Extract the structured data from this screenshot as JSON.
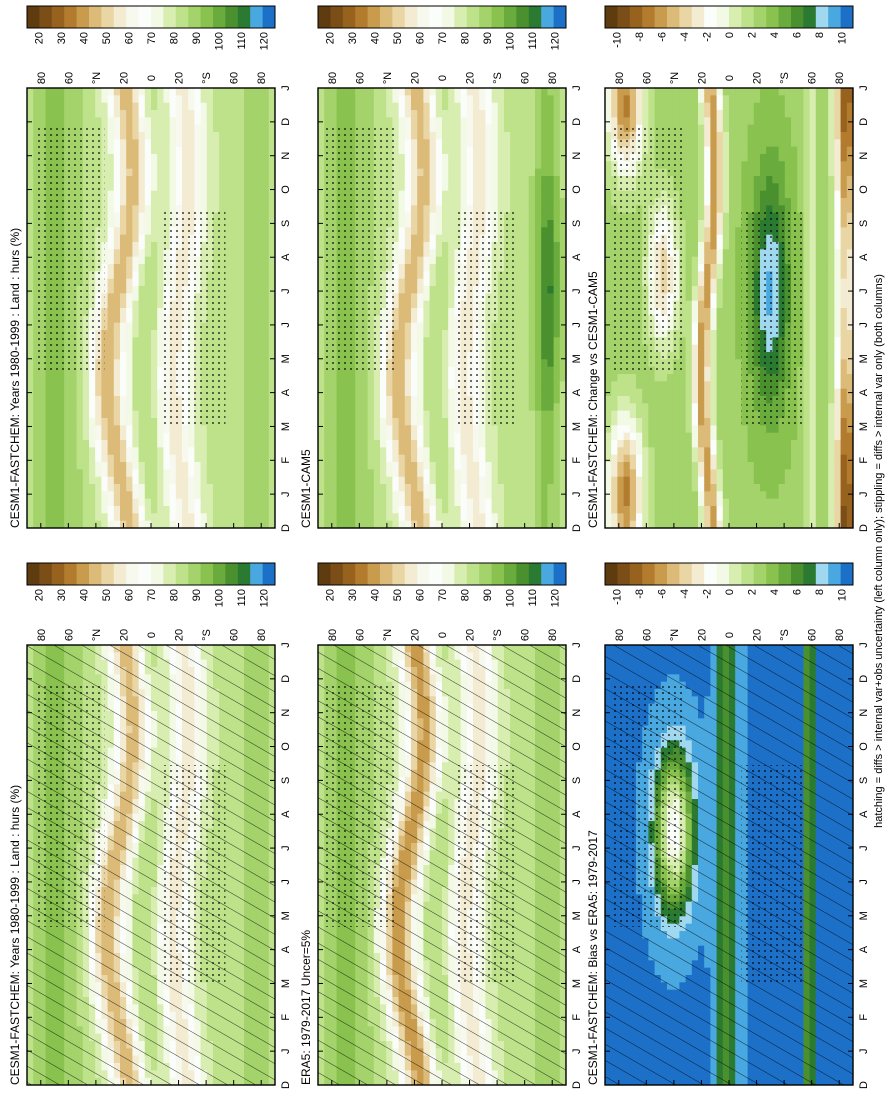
{
  "figure": {
    "footnote": "hatching = diffs > internal var+obs uncertainty (left column only); stippling = diffs > internal var only (both columns)",
    "colors": {
      "abs": [
        "#5e3c0f",
        "#7a4e16",
        "#96621e",
        "#b27b2e",
        "#c99b4c",
        "#dcbb79",
        "#e9d6a4",
        "#f3ecd2",
        "#f7f8ee",
        "#fbfdfb",
        "#f2f9e4",
        "#d8eeb0",
        "#bde28a",
        "#a3d36a",
        "#89c24f",
        "#6aab3e",
        "#4a902f",
        "#2b7a32",
        "#4aa8e0",
        "#1c70c8"
      ],
      "diff": [
        "#5e3c0f",
        "#7a4e16",
        "#96621e",
        "#b27b2e",
        "#c99b4c",
        "#dcbb79",
        "#e9d6a4",
        "#f3ecd2",
        "#fbfdfb",
        "#f2f9e4",
        "#d8eeb0",
        "#bde28a",
        "#a3d36a",
        "#89c24f",
        "#6aab3e",
        "#4a902f",
        "#2b7a32",
        "#a0d8f0",
        "#4aa8e0",
        "#1c70c8"
      ]
    }
  },
  "chart_data": [
    {
      "type": "heatmap",
      "title": "CESM1-FASTCHEM: Years 1980-1999 : Land : hurs (%)",
      "x_ticks": [
        "D",
        "J",
        "F",
        "M",
        "A",
        "M",
        "J",
        "J",
        "A",
        "S",
        "O",
        "N",
        "D",
        "J"
      ],
      "y_ticks": [
        "80",
        "60",
        "°N",
        "20",
        "0",
        "20",
        "°S",
        "60",
        "80"
      ],
      "colorbar_ticks": [
        "120",
        "110",
        "100",
        "90",
        "80",
        "70",
        "60",
        "50",
        "40",
        "30",
        "20"
      ],
      "colorbar_range": [
        15,
        125
      ],
      "mode": "abs",
      "hatching": true,
      "stippling": true,
      "variable": "hurs",
      "units": "%"
    },
    {
      "type": "heatmap",
      "title": "CESM1-FASTCHEM: Years 1980-1999 : Land : hurs (%)",
      "x_ticks": [
        "D",
        "J",
        "F",
        "M",
        "A",
        "M",
        "J",
        "J",
        "A",
        "S",
        "O",
        "N",
        "D",
        "J"
      ],
      "y_ticks": [
        "80",
        "60",
        "°N",
        "20",
        "0",
        "20",
        "°S",
        "60",
        "80"
      ],
      "colorbar_ticks": [
        "120",
        "110",
        "100",
        "90",
        "80",
        "70",
        "60",
        "50",
        "40",
        "30",
        "20"
      ],
      "colorbar_range": [
        15,
        125
      ],
      "mode": "abs",
      "hatching": false,
      "stippling": true
    },
    {
      "type": "heatmap",
      "title": "ERA5: 1979-2017 Uncer=5%",
      "x_ticks": [
        "D",
        "J",
        "F",
        "M",
        "A",
        "M",
        "J",
        "J",
        "A",
        "S",
        "O",
        "N",
        "D",
        "J"
      ],
      "y_ticks": [
        "80",
        "60",
        "°N",
        "20",
        "0",
        "20",
        "°S",
        "60",
        "80"
      ],
      "colorbar_ticks": [
        "120",
        "110",
        "100",
        "90",
        "80",
        "70",
        "60",
        "50",
        "40",
        "30",
        "20"
      ],
      "colorbar_range": [
        15,
        125
      ],
      "mode": "abs",
      "hatching": true,
      "stippling": true
    },
    {
      "type": "heatmap",
      "title": "CESM1-CAM5",
      "x_ticks": [
        "D",
        "J",
        "F",
        "M",
        "A",
        "M",
        "J",
        "J",
        "A",
        "S",
        "O",
        "N",
        "D",
        "J"
      ],
      "y_ticks": [
        "80",
        "60",
        "°N",
        "20",
        "0",
        "20",
        "°S",
        "60",
        "80"
      ],
      "colorbar_ticks": [
        "120",
        "110",
        "100",
        "90",
        "80",
        "70",
        "60",
        "50",
        "40",
        "30",
        "20"
      ],
      "colorbar_range": [
        15,
        125
      ],
      "mode": "abs",
      "hatching": false,
      "stippling": true
    },
    {
      "type": "heatmap",
      "title": "CESM1-FASTCHEM: Bias vs ERA5: 1979-2017",
      "x_ticks": [
        "D",
        "J",
        "F",
        "M",
        "A",
        "M",
        "J",
        "J",
        "A",
        "S",
        "O",
        "N",
        "D",
        "J"
      ],
      "y_ticks": [
        "80",
        "60",
        "°N",
        "20",
        "0",
        "20",
        "°S",
        "60",
        "80"
      ],
      "colorbar_ticks": [
        "10",
        "8",
        "6",
        "4",
        "2",
        "0",
        "-2",
        "-4",
        "-6",
        "-8",
        "-10"
      ],
      "colorbar_range": [
        -11,
        11
      ],
      "mode": "bias",
      "hatching": true,
      "stippling": true
    },
    {
      "type": "heatmap",
      "title": "CESM1-FASTCHEM: Change vs CESM1-CAM5",
      "x_ticks": [
        "D",
        "J",
        "F",
        "M",
        "A",
        "M",
        "J",
        "J",
        "A",
        "S",
        "O",
        "N",
        "D",
        "J"
      ],
      "y_ticks": [
        "80",
        "60",
        "°N",
        "20",
        "0",
        "20",
        "°S",
        "60",
        "80"
      ],
      "colorbar_ticks": [
        "10",
        "8",
        "6",
        "4",
        "2",
        "0",
        "-2",
        "-4",
        "-6",
        "-8",
        "-10"
      ],
      "colorbar_range": [
        -11,
        11
      ],
      "mode": "change",
      "hatching": false,
      "stippling": true
    }
  ]
}
